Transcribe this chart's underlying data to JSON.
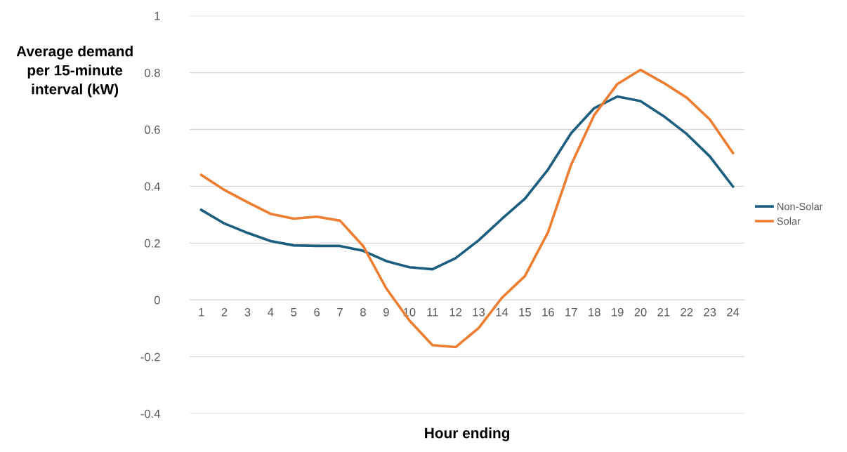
{
  "chart_data": {
    "type": "line",
    "xlabel": "Hour ending",
    "ylabel": "Average demand\nper 15-minute\ninterval (kW)",
    "categories": [
      "1",
      "2",
      "3",
      "4",
      "5",
      "6",
      "7",
      "8",
      "9",
      "10",
      "11",
      "12",
      "13",
      "14",
      "15",
      "16",
      "17",
      "18",
      "19",
      "20",
      "21",
      "22",
      "23",
      "24"
    ],
    "series": [
      {
        "name": "Non-Solar",
        "color": "#1b5e80",
        "values": [
          0.317,
          0.269,
          0.236,
          0.207,
          0.192,
          0.19,
          0.19,
          0.173,
          0.137,
          0.115,
          0.108,
          0.147,
          0.21,
          0.285,
          0.356,
          0.459,
          0.587,
          0.675,
          0.716,
          0.7,
          0.647,
          0.584,
          0.505,
          0.399
        ]
      },
      {
        "name": "Solar",
        "color": "#ed7d31",
        "values": [
          0.44,
          0.387,
          0.344,
          0.303,
          0.286,
          0.293,
          0.279,
          0.19,
          0.041,
          -0.072,
          -0.159,
          -0.166,
          -0.099,
          0.007,
          0.084,
          0.238,
          0.476,
          0.651,
          0.76,
          0.81,
          0.764,
          0.712,
          0.635,
          0.517
        ]
      }
    ],
    "ylim": [
      -0.4,
      1
    ],
    "yticks": [
      -0.4,
      -0.2,
      0,
      0.2,
      0.4,
      0.6,
      0.8,
      1
    ],
    "grid": "y",
    "legend": "right",
    "marker": "none",
    "line_style": "solid"
  }
}
